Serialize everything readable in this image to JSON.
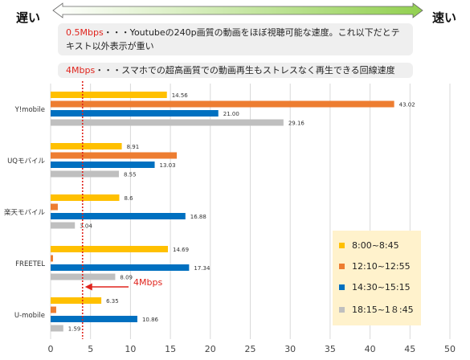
{
  "header": {
    "slow_label": "遅い",
    "fast_label": "速い",
    "arrow_fill": "#92d050",
    "note1_value": "0.5Mbps",
    "note1_text": "・・・Youtubeの240p画質の動画をほぼ視聴可能な速度。これ以下だとテキスト以外表示が重い",
    "note2_value": "4Mbps",
    "note2_text": "・・・スマホでの超高画質での動画再生もストレスなく再生できる回線速度"
  },
  "chart_data": {
    "type": "bar",
    "orientation": "horizontal",
    "categories": [
      "Y!mobile",
      "UQモバイル",
      "楽天モバイル",
      "FREETEL",
      "U-mobile"
    ],
    "series": [
      {
        "name": "8:00~8:45",
        "color": "#ffc000",
        "values": [
          14.56,
          8.91,
          8.6,
          14.69,
          6.35
        ],
        "labels": [
          "14.56",
          "8.91",
          "8.6",
          "14.69",
          "6.35"
        ]
      },
      {
        "name": "12:10~12:55",
        "color": "#ed7d31",
        "values": [
          43.02,
          15.8,
          0.9,
          0.3,
          0.7
        ],
        "labels": [
          "43.02",
          "",
          "",
          "",
          ""
        ]
      },
      {
        "name": "14:30~15:15",
        "color": "#0070c0",
        "values": [
          21.0,
          13.03,
          16.88,
          17.34,
          10.86
        ],
        "labels": [
          "21.00",
          "13.03",
          "16.88",
          "17.34",
          "10.86"
        ]
      },
      {
        "name": "18:15~1８:45",
        "color": "#bfbfbf",
        "values": [
          29.16,
          8.55,
          3.04,
          8.09,
          1.59
        ],
        "labels": [
          "29.16",
          "8.55",
          "3.04",
          "8.09",
          "1.59"
        ]
      }
    ],
    "xlim": [
      0,
      50
    ],
    "xticks": [
      0,
      5,
      10,
      15,
      20,
      25,
      30,
      35,
      40,
      45,
      50
    ],
    "grid": true,
    "legend_position": "bottom-right",
    "reference_line": {
      "value": 4,
      "label": "4Mbps",
      "color": "#e0241d"
    }
  }
}
